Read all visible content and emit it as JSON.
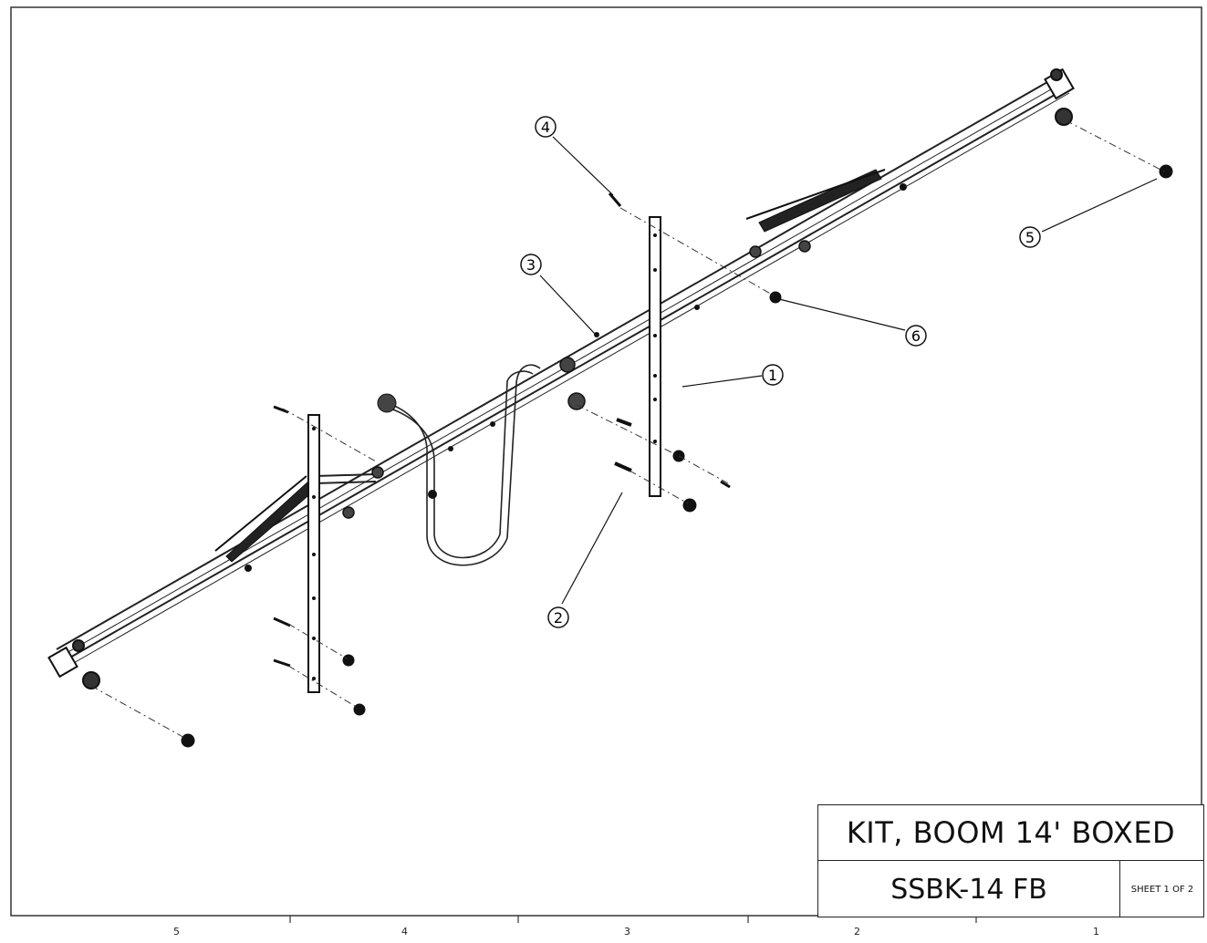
{
  "title_block": {
    "title": "KIT, BOOM 14' BOXED",
    "part_number": "SSBK-14 FB",
    "sheet": "SHEET 1 OF 2"
  },
  "balloons": [
    "1",
    "2",
    "3",
    "4",
    "5",
    "6"
  ],
  "zones": [
    "5",
    "4",
    "3",
    "2",
    "1"
  ]
}
